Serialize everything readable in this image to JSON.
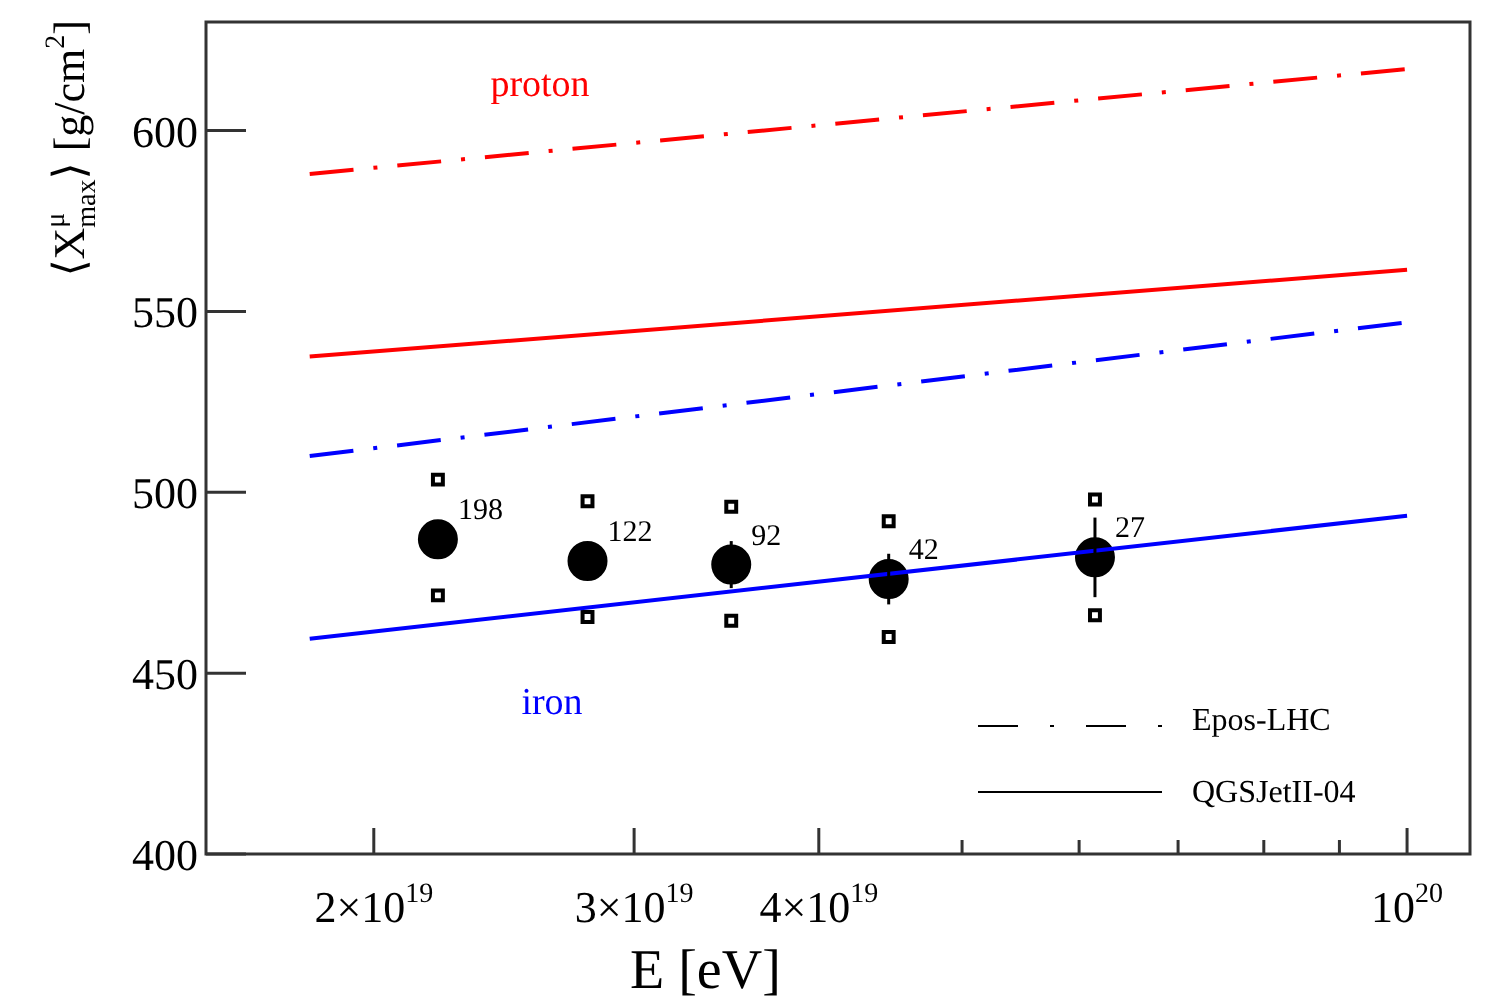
{
  "chart_data": {
    "type": "scatter",
    "xlabel": "E [eV]",
    "ylabel": "⟨X$^{μ}$$_{max}$⟩ [g/cm$^{2}$]",
    "log": "x",
    "xlim": [
      1.54e+19,
      1.103e+20
    ],
    "ylim": [
      400,
      630
    ],
    "xticks": [
      {
        "value": 2e+19,
        "label": "2×10$^{19}$"
      },
      {
        "value": 3e+19,
        "label": "3×10$^{19}$"
      },
      {
        "value": 4e+19,
        "label": "4×10$^{19}$"
      },
      {
        "value": 5e+19,
        "label": null
      },
      {
        "value": 6e+19,
        "label": null
      },
      {
        "value": 7e+19,
        "label": null
      },
      {
        "value": 8e+19,
        "label": null
      },
      {
        "value": 9e+19,
        "label": null
      },
      {
        "value": 1e+20,
        "label": "10$^{20}$"
      }
    ],
    "yticks": [
      400,
      450,
      500,
      550,
      600
    ],
    "series": [
      {
        "type": "line",
        "color": "#ff0000",
        "line_style": "dashed",
        "marker": "none",
        "x": [
          1.81e+19,
          1e+20
        ],
        "values": [
          588,
          617
        ]
      },
      {
        "type": "line",
        "color": "#ff0000",
        "line_style": "solid",
        "marker": "none",
        "x": [
          1.81e+19,
          1e+20
        ],
        "values": [
          537.5,
          561.5
        ]
      },
      {
        "type": "line",
        "color": "#0000ff",
        "line_style": "dashed",
        "marker": "none",
        "x": [
          1.81e+19,
          1e+20
        ],
        "values": [
          510,
          547
        ]
      },
      {
        "type": "line",
        "color": "#0000ff",
        "line_style": "solid",
        "marker": "none",
        "x": [
          1.81e+19,
          1e+20
        ],
        "values": [
          459.5,
          493.5
        ]
      },
      {
        "color": "#000000",
        "marker": "circle",
        "x": [
          2.21e+19,
          2.79e+19,
          3.49e+19,
          4.46e+19,
          6.15e+19
        ],
        "values": [
          487,
          481,
          480,
          476,
          482
        ],
        "errors": [
          4.5,
          5,
          6.5,
          7,
          11
        ]
      },
      {
        "color": "#000000",
        "marker": "square",
        "x": [
          2.21e+19,
          2.79e+19,
          3.49e+19,
          4.46e+19,
          6.15e+19
        ],
        "values": [
          503.5,
          497.5,
          496,
          492,
          498
        ]
      },
      {
        "color": "#000000",
        "marker": "square",
        "x": [
          2.21e+19,
          2.79e+19,
          3.49e+19,
          4.46e+19,
          6.15e+19
        ],
        "values": [
          471.5,
          465.5,
          464.5,
          460,
          466
        ]
      }
    ],
    "annotations": [
      "proton",
      "iron",
      "Epos-LHC",
      "QGSJetII-04",
      {
        "text": "198",
        "x": 2.21e+19,
        "y": 487
      },
      {
        "text": "122",
        "x": 2.79e+19,
        "y": 481
      },
      {
        "text": "92",
        "x": 3.49e+19,
        "y": 480
      },
      {
        "text": "42",
        "x": 4.46e+19,
        "y": 476
      },
      {
        "text": "27",
        "x": 6.15e+19,
        "y": 482
      }
    ]
  }
}
